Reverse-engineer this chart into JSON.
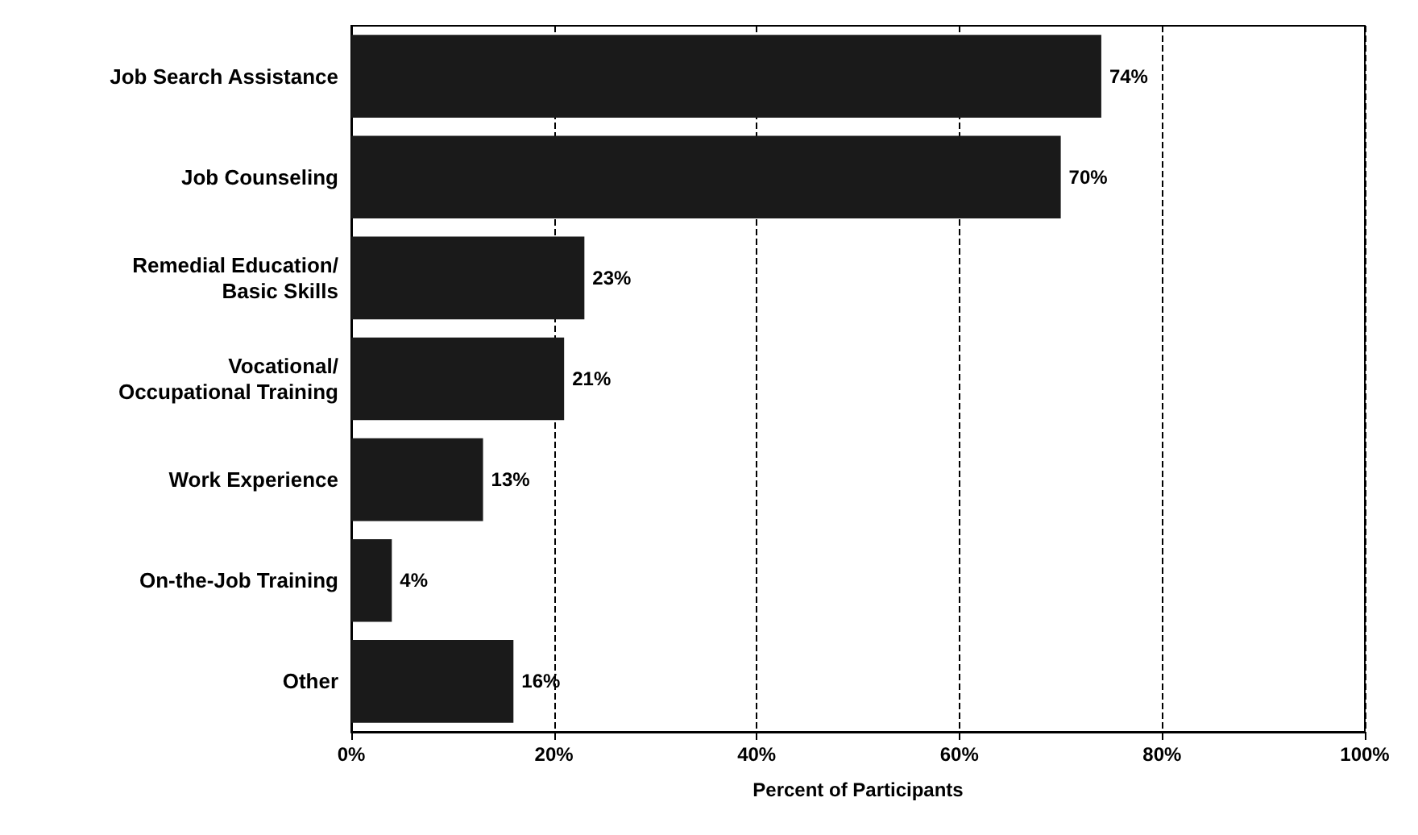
{
  "chart_data": {
    "type": "bar",
    "orientation": "horizontal",
    "xlabel": "Percent of Participants",
    "categories": [
      "Job Search Assistance",
      "Job Counseling",
      "Remedial Education/\nBasic Skills",
      "Vocational/\nOccupational Training",
      "Work Experience",
      "On-the-Job Training",
      "Other"
    ],
    "values": [
      74,
      70,
      23,
      21,
      13,
      4,
      16
    ],
    "value_labels": [
      "74%",
      "70%",
      "23%",
      "21%",
      "13%",
      "4%",
      "16%"
    ],
    "color": "#1a1a1a",
    "xlim": [
      0,
      100
    ],
    "xticks": [
      {
        "value": 0,
        "label": "0%"
      },
      {
        "value": 20,
        "label": "20%"
      },
      {
        "value": 40,
        "label": "40%"
      },
      {
        "value": 60,
        "label": "60%"
      },
      {
        "value": 80,
        "label": "80%"
      },
      {
        "value": 100,
        "label": "100%"
      }
    ],
    "grid": "x"
  }
}
